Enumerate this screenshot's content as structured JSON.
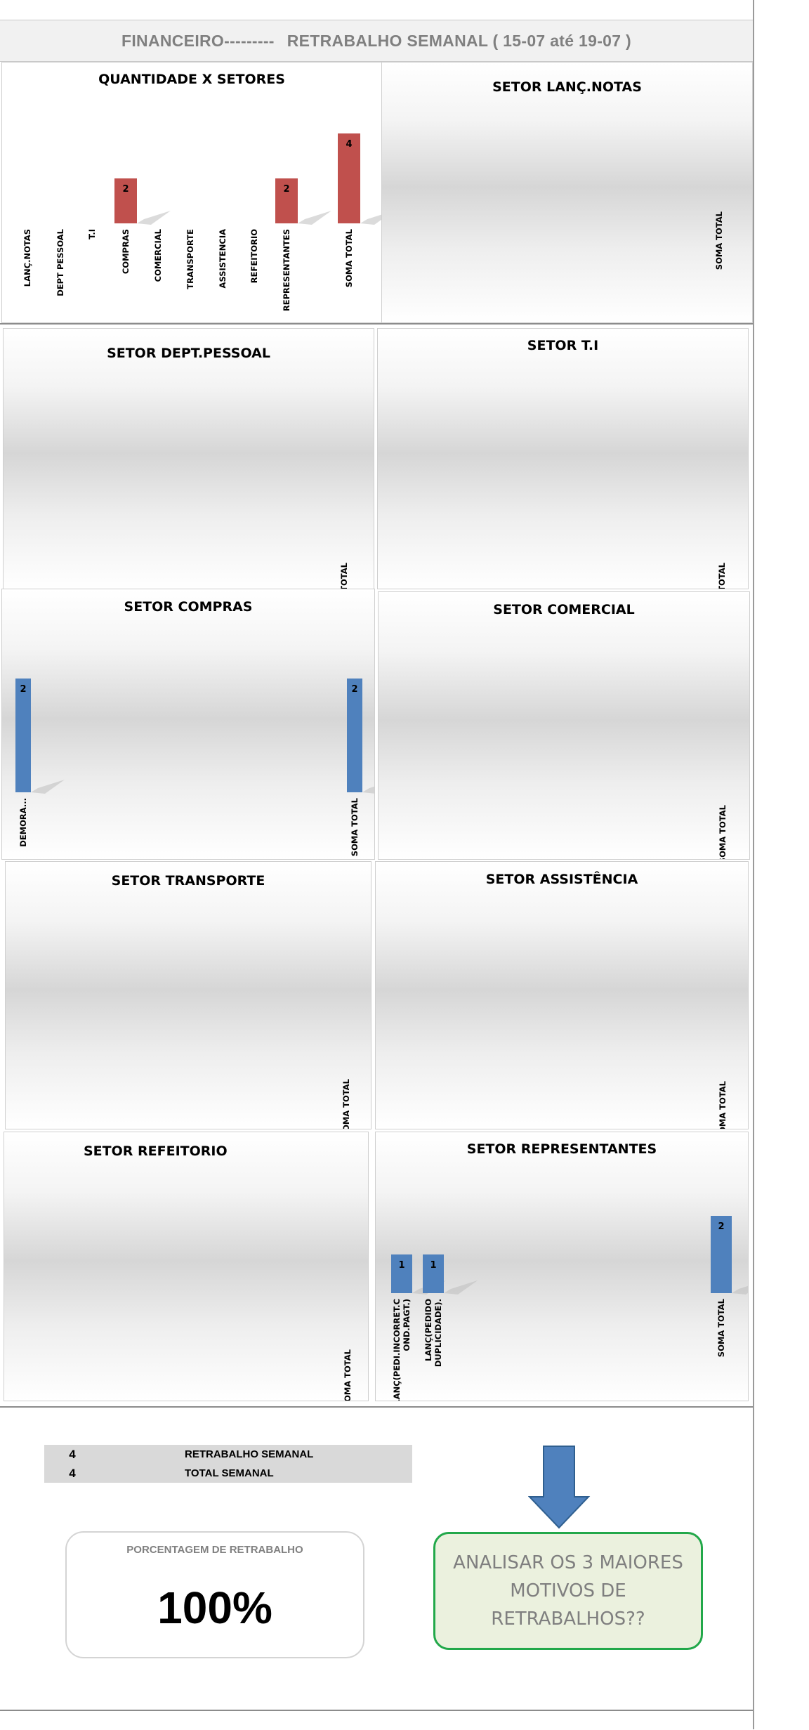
{
  "header": {
    "left": "FINANCEIRO---------",
    "right": "RETRABALHO SEMANAL ( 15-07 até 19-07 )"
  },
  "colors": {
    "red_bar": "#c0504d",
    "blue_bar": "#4f81bd",
    "green_border": "#22a84a",
    "note_fill": "#ebf1de"
  },
  "chart_data": [
    {
      "type": "bar",
      "title": "QUANTIDADE X SETORES",
      "categories": [
        "LANÇ.NOTAS",
        "DEPT PESSOAL",
        "T.I",
        "COMPRAS",
        "COMERCIAL",
        "TRANSPORTE",
        "ASSISTENCIA",
        "REFEITORIO",
        "REPRESENTANTES",
        "SOMA TOTAL"
      ],
      "values": [
        0,
        0,
        0,
        2,
        0,
        0,
        0,
        0,
        2,
        4
      ],
      "data_labels": [
        "",
        "",
        "",
        "2",
        "",
        "",
        "",
        "",
        "2",
        "4"
      ],
      "color": "#c0504d",
      "ylim": [
        0,
        4
      ]
    },
    {
      "type": "bar",
      "title": "SETOR LANÇ.NOTAS",
      "categories": [
        "SOMA TOTAL"
      ],
      "values": [
        0
      ],
      "data_labels": [
        ""
      ],
      "color": "#4f81bd"
    },
    {
      "type": "bar",
      "title": "SETOR DEPT.PESSOAL",
      "categories": [
        "SOMA TOTAL"
      ],
      "values": [
        0
      ],
      "data_labels": [
        ""
      ],
      "color": "#4f81bd"
    },
    {
      "type": "bar",
      "title": "SETOR T.I",
      "categories": [
        "SOMA TOTAL"
      ],
      "values": [
        0
      ],
      "data_labels": [
        ""
      ],
      "color": "#4f81bd"
    },
    {
      "type": "bar",
      "title": "SETOR COMPRAS",
      "categories": [
        "DEMORA...",
        "SOMA TOTAL"
      ],
      "values": [
        2,
        2
      ],
      "data_labels": [
        "2",
        "2"
      ],
      "color": "#4f81bd",
      "ylim": [
        0,
        2
      ]
    },
    {
      "type": "bar",
      "title": "SETOR COMERCIAL",
      "categories": [
        "SOMA TOTAL"
      ],
      "values": [
        0
      ],
      "data_labels": [
        ""
      ],
      "color": "#4f81bd"
    },
    {
      "type": "bar",
      "title": "SETOR TRANSPORTE",
      "categories": [
        "SOMA TOTAL"
      ],
      "values": [
        0
      ],
      "data_labels": [
        ""
      ],
      "color": "#4f81bd"
    },
    {
      "type": "bar",
      "title": "SETOR ASSISTÊNCIA",
      "categories": [
        "SOMA TOTAL"
      ],
      "values": [
        0
      ],
      "data_labels": [
        ""
      ],
      "color": "#4f81bd"
    },
    {
      "type": "bar",
      "title": "SETOR REFEITORIO",
      "categories": [
        "SOMA TOTAL"
      ],
      "values": [
        0
      ],
      "data_labels": [
        ""
      ],
      "color": "#4f81bd"
    },
    {
      "type": "bar",
      "title": "SETOR REPRESENTANTES",
      "categories": [
        "LANÇ(PEDI.INCORRET.COND.PAGT.)",
        "LANÇ(PEDIDO DUPLICIDADE).",
        "SOMA TOTAL"
      ],
      "category_lines": [
        [
          "LANÇ(PEDI.INCORRET.C",
          "OND.PAGT.)"
        ],
        [
          "LANÇ(PEDIDO",
          "DUPLICIDADE)."
        ],
        [
          "SOMA TOTAL"
        ]
      ],
      "values": [
        1,
        1,
        2
      ],
      "data_labels": [
        "1",
        "1",
        "2"
      ],
      "color": "#4f81bd",
      "ylim": [
        0,
        2
      ]
    }
  ],
  "summary": {
    "rows": [
      {
        "value": "4",
        "label": "RETRABALHO SEMANAL"
      },
      {
        "value": "4",
        "label": "TOTAL  SEMANAL"
      }
    ]
  },
  "percentage": {
    "caption": "PORCENTAGEM DE RETRABALHO",
    "value": "100%"
  },
  "note": {
    "line1": "ANALISAR OS 3 MAIORES",
    "line2": "MOTIVOS DE",
    "line3": "RETRABALHOS??"
  }
}
